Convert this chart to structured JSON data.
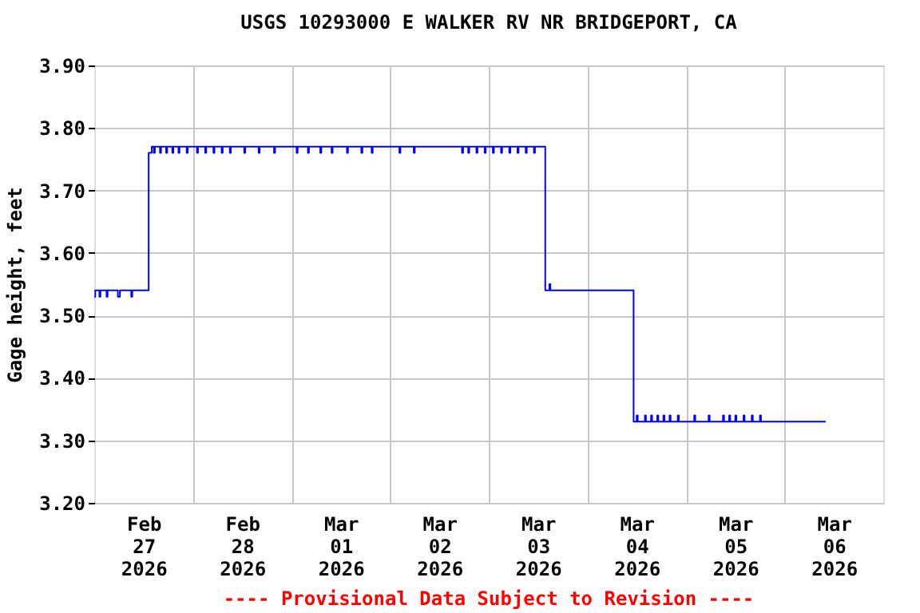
{
  "chart_data": {
    "type": "step",
    "title": "USGS 10293000 E WALKER RV NR BRIDGEPORT, CA",
    "ylabel": "Gage height, feet",
    "annotations": [
      "---- Provisional Data Subject to Revision ----"
    ],
    "x": [
      "2026-02-27T00:00",
      "2026-02-27T00:15",
      "2026-02-27T01:15",
      "2026-02-27T01:30",
      "2026-02-27T03:00",
      "2026-02-27T03:15",
      "2026-02-27T05:45",
      "2026-02-27T06:15",
      "2026-02-27T09:00",
      "2026-02-27T09:15",
      "2026-02-27T13:15",
      "2026-02-27T14:00",
      "2026-02-27T14:30",
      "2026-02-27T14:45",
      "2026-02-27T16:00",
      "2026-02-27T16:15",
      "2026-02-27T17:30",
      "2026-02-27T17:45",
      "2026-02-27T19:00",
      "2026-02-27T19:15",
      "2026-02-27T20:30",
      "2026-02-27T20:45",
      "2026-02-27T22:30",
      "2026-02-27T22:45",
      "2026-02-28T01:00",
      "2026-02-28T01:15",
      "2026-02-28T03:00",
      "2026-02-28T03:15",
      "2026-02-28T05:00",
      "2026-02-28T05:15",
      "2026-02-28T07:00",
      "2026-02-28T07:15",
      "2026-02-28T09:00",
      "2026-02-28T09:15",
      "2026-02-28T12:30",
      "2026-02-28T12:45",
      "2026-02-28T16:00",
      "2026-02-28T16:15",
      "2026-02-28T19:45",
      "2026-02-28T20:00",
      "2026-03-01T01:15",
      "2026-03-01T01:30",
      "2026-03-01T04:00",
      "2026-03-01T04:15",
      "2026-03-01T07:00",
      "2026-03-01T07:15",
      "2026-03-01T09:45",
      "2026-03-01T10:00",
      "2026-03-01T13:30",
      "2026-03-01T13:45",
      "2026-03-01T17:00",
      "2026-03-01T17:15",
      "2026-03-01T19:30",
      "2026-03-01T19:45",
      "2026-03-02T02:15",
      "2026-03-02T02:30",
      "2026-03-02T05:45",
      "2026-03-02T06:00",
      "2026-03-02T17:30",
      "2026-03-02T17:45",
      "2026-03-02T19:00",
      "2026-03-02T19:15",
      "2026-03-02T21:00",
      "2026-03-02T21:15",
      "2026-03-02T23:00",
      "2026-03-02T23:15",
      "2026-03-03T01:00",
      "2026-03-03T01:15",
      "2026-03-03T03:00",
      "2026-03-03T03:15",
      "2026-03-03T05:00",
      "2026-03-03T05:15",
      "2026-03-03T07:00",
      "2026-03-03T07:15",
      "2026-03-03T09:00",
      "2026-03-03T09:15",
      "2026-03-03T11:00",
      "2026-03-03T11:15",
      "2026-03-03T13:45",
      "2026-03-03T14:45",
      "2026-03-03T15:00",
      "2026-03-04T11:15",
      "2026-03-04T12:00",
      "2026-03-04T12:15",
      "2026-03-04T14:00",
      "2026-03-04T14:15",
      "2026-03-04T15:30",
      "2026-03-04T15:45",
      "2026-03-04T17:00",
      "2026-03-04T17:15",
      "2026-03-04T18:30",
      "2026-03-04T18:45",
      "2026-03-04T20:00",
      "2026-03-04T20:15",
      "2026-03-04T22:00",
      "2026-03-04T22:15",
      "2026-03-05T02:00",
      "2026-03-05T02:15",
      "2026-03-05T05:30",
      "2026-03-05T05:45",
      "2026-03-05T09:00",
      "2026-03-05T09:15",
      "2026-03-05T10:30",
      "2026-03-05T10:45",
      "2026-03-05T12:00",
      "2026-03-05T12:15",
      "2026-03-05T14:00",
      "2026-03-05T14:15",
      "2026-03-05T16:00",
      "2026-03-05T16:15",
      "2026-03-05T18:00",
      "2026-03-05T18:15",
      "2026-03-06T10:00"
    ],
    "series": [
      {
        "color": "#0000ff",
        "values": [
          3.53,
          3.54,
          3.53,
          3.54,
          3.53,
          3.54,
          3.53,
          3.54,
          3.53,
          3.54,
          3.76,
          3.77,
          3.76,
          3.77,
          3.76,
          3.77,
          3.76,
          3.77,
          3.76,
          3.77,
          3.76,
          3.77,
          3.76,
          3.77,
          3.76,
          3.77,
          3.76,
          3.77,
          3.76,
          3.77,
          3.76,
          3.77,
          3.76,
          3.77,
          3.76,
          3.77,
          3.76,
          3.77,
          3.76,
          3.77,
          3.76,
          3.77,
          3.76,
          3.77,
          3.76,
          3.77,
          3.76,
          3.77,
          3.76,
          3.77,
          3.76,
          3.77,
          3.76,
          3.77,
          3.76,
          3.77,
          3.76,
          3.77,
          3.76,
          3.77,
          3.76,
          3.77,
          3.76,
          3.77,
          3.76,
          3.77,
          3.76,
          3.77,
          3.76,
          3.77,
          3.76,
          3.77,
          3.76,
          3.77,
          3.76,
          3.77,
          3.76,
          3.77,
          3.54,
          3.55,
          3.54,
          3.33,
          3.34,
          3.33,
          3.34,
          3.33,
          3.34,
          3.33,
          3.34,
          3.33,
          3.34,
          3.33,
          3.34,
          3.33,
          3.34,
          3.33,
          3.34,
          3.33,
          3.34,
          3.33,
          3.34,
          3.33,
          3.34,
          3.33,
          3.34,
          3.33,
          3.34,
          3.33,
          3.34,
          3.33,
          3.34,
          3.33,
          3.33
        ]
      }
    ],
    "xlim": [
      "2026-02-27T00:00",
      "2026-03-07T00:00"
    ],
    "xticks": [
      {
        "value": "2026-02-27T12:00",
        "label": "Feb\n27\n2026"
      },
      {
        "value": "2026-02-28T00:00",
        "label": null
      },
      {
        "value": "2026-02-28T12:00",
        "label": "Feb\n28\n2026"
      },
      {
        "value": "2026-03-01T00:00",
        "label": null
      },
      {
        "value": "2026-03-01T12:00",
        "label": "Mar\n01\n2026"
      },
      {
        "value": "2026-03-02T00:00",
        "label": null
      },
      {
        "value": "2026-03-02T12:00",
        "label": "Mar\n02\n2026"
      },
      {
        "value": "2026-03-03T00:00",
        "label": null
      },
      {
        "value": "2026-03-03T12:00",
        "label": "Mar\n03\n2026"
      },
      {
        "value": "2026-03-04T00:00",
        "label": null
      },
      {
        "value": "2026-03-04T12:00",
        "label": "Mar\n04\n2026"
      },
      {
        "value": "2026-03-05T00:00",
        "label": null
      },
      {
        "value": "2026-03-05T12:00",
        "label": "Mar\n05\n2026"
      },
      {
        "value": "2026-03-06T00:00",
        "label": null
      },
      {
        "value": "2026-03-06T12:00",
        "label": "Mar\n06\n2026"
      }
    ],
    "ylim": [
      3.2,
      3.9
    ],
    "yticks": [
      {
        "value": 3.2,
        "label": "3.20"
      },
      {
        "value": 3.3,
        "label": "3.30"
      },
      {
        "value": 3.4,
        "label": "3.40"
      },
      {
        "value": 3.5,
        "label": "3.50"
      },
      {
        "value": 3.6,
        "label": "3.60"
      },
      {
        "value": 3.7,
        "label": "3.70"
      },
      {
        "value": 3.8,
        "label": "3.80"
      },
      {
        "value": 3.9,
        "label": "3.90"
      }
    ],
    "grid": true
  }
}
